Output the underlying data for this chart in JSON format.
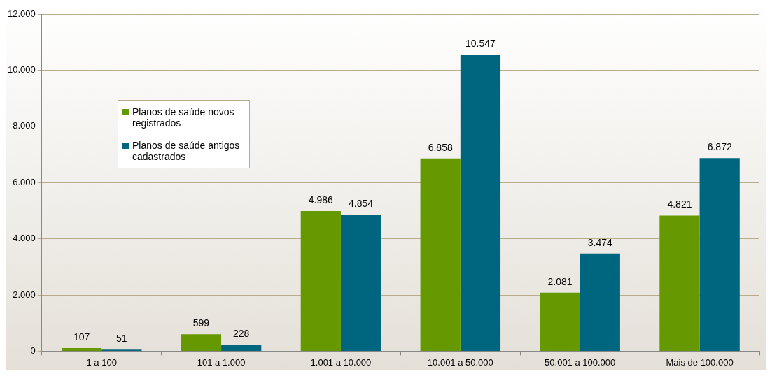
{
  "chart_data": {
    "type": "bar",
    "categories": [
      "1 a 100",
      "101 a 1.000",
      "1.001 a 10.000",
      "10.001 a 50.000",
      "50.001 a 100.000",
      "Mais de 100.000"
    ],
    "series": [
      {
        "name": "Planos de saúde novos registrados",
        "color": "#669900",
        "values": [
          107,
          599,
          4986,
          6858,
          2081,
          4821
        ],
        "value_labels": [
          "107",
          "599",
          "4.986",
          "6.858",
          "2.081",
          "4.821"
        ]
      },
      {
        "name": "Planos de saúde antigos cadastrados",
        "color": "#006680",
        "values": [
          51,
          228,
          4854,
          10547,
          3474,
          6872
        ],
        "value_labels": [
          "51",
          "228",
          "4.854",
          "10.547",
          "3.474",
          "6.872"
        ]
      }
    ],
    "ylim": [
      0,
      12000
    ],
    "yticks": [
      {
        "value": 0,
        "label": "0"
      },
      {
        "value": 2000,
        "label": "2.000"
      },
      {
        "value": 4000,
        "label": "4.000"
      },
      {
        "value": 6000,
        "label": "6.000"
      },
      {
        "value": 8000,
        "label": "8.000"
      },
      {
        "value": 10000,
        "label": "10.000"
      },
      {
        "value": 12000,
        "label": "12.000"
      }
    ],
    "grid": "y",
    "legend": "top left"
  }
}
